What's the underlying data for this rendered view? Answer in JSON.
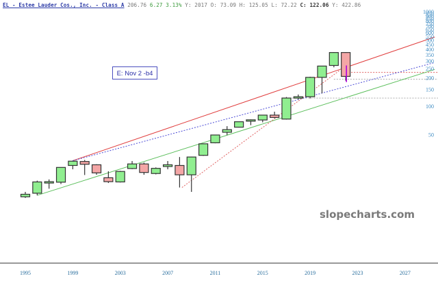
{
  "header": {
    "title": "EL - Estee Lauder Cos., Inc. - Class A",
    "price": "206.76",
    "change": "6.27",
    "change_pct": "3.13%",
    "year_label": "Y: 2017",
    "open_label": "O:",
    "open": "73.09",
    "high_label": "H:",
    "high": "125.05",
    "low_label": "L:",
    "low": "72.22",
    "close_label": "C:",
    "close": "122.06",
    "extra_label": "Y:",
    "extra": "422.86"
  },
  "annotation": {
    "text": "E:  Nov 2 -b4"
  },
  "watermark": "slopecharts.com",
  "colors": {
    "up_fill": "#90ee90",
    "down_fill": "#f4a6a6",
    "candle_border": "#333333",
    "red_trend": "#e03c3c",
    "blue_trend": "#4a4ad6",
    "green_trend": "#5cbf5c",
    "red_dotted": "#e06060",
    "gray_dotted": "#aaaaaa",
    "magenta_marker": "#b000e0",
    "axis_text": "#3c8ac2"
  },
  "chart_data": {
    "type": "candlestick",
    "title": "EL - Estee Lauder Cos., Inc. - Class A (yearly, log scale)",
    "xlabel": "",
    "ylabel": "",
    "y_scale": "log",
    "ylim": [
      28,
      1000
    ],
    "y_ticks": [
      50,
      100,
      150,
      200,
      250,
      300,
      350,
      400,
      450,
      500,
      550,
      600,
      650,
      700,
      750,
      800,
      850,
      900,
      950,
      1000
    ],
    "x_ticks": [
      "1995",
      "1999",
      "2003",
      "2007",
      "2011",
      "2015",
      "2019",
      "2023",
      "2027"
    ],
    "candles": [
      {
        "year": 1995,
        "open": 11.0,
        "close": 11.7,
        "high": 12.4,
        "low": 10.7
      },
      {
        "year": 1996,
        "open": 12.0,
        "close": 15.8,
        "high": 16.3,
        "low": 11.4
      },
      {
        "year": 1997,
        "open": 15.5,
        "close": 15.9,
        "high": 16.8,
        "low": 13.4
      },
      {
        "year": 1998,
        "open": 15.7,
        "close": 22.5,
        "high": 22.5,
        "low": 15.0
      },
      {
        "year": 1999,
        "open": 23.6,
        "close": 26.2,
        "high": 26.5,
        "low": 21.5
      },
      {
        "year": 2000,
        "open": 26.0,
        "close": 24.3,
        "high": 27.0,
        "low": 18.7
      },
      {
        "year": 2001,
        "open": 24.0,
        "close": 19.7,
        "high": 24.3,
        "low": 18.8
      },
      {
        "year": 2002,
        "open": 17.5,
        "close": 15.9,
        "high": 20.5,
        "low": 15.4
      },
      {
        "year": 2003,
        "open": 15.8,
        "close": 20.4,
        "high": 20.7,
        "low": 15.6
      },
      {
        "year": 2004,
        "open": 21.9,
        "close": 24.5,
        "high": 26.3,
        "low": 21.6
      },
      {
        "year": 2005,
        "open": 24.5,
        "close": 19.9,
        "high": 25.3,
        "low": 18.8
      },
      {
        "year": 2006,
        "open": 19.4,
        "close": 22.0,
        "high": 22.5,
        "low": 19.0
      },
      {
        "year": 2007,
        "open": 23.0,
        "close": 24.0,
        "high": 26.3,
        "low": 21.5
      },
      {
        "year": 2008,
        "open": 23.6,
        "close": 18.8,
        "high": 29.0,
        "low": 13.8
      },
      {
        "year": 2009,
        "open": 18.8,
        "close": 29.0,
        "high": 29.2,
        "low": 12.4
      },
      {
        "year": 2010,
        "open": 30.2,
        "close": 40.0,
        "high": 40.2,
        "low": 29.8
      },
      {
        "year": 2011,
        "open": 41.0,
        "close": 49.6,
        "high": 50.0,
        "low": 40.5
      },
      {
        "year": 2012,
        "open": 53.0,
        "close": 56.5,
        "high": 61.5,
        "low": 49.5
      },
      {
        "year": 2013,
        "open": 60.0,
        "close": 68.5,
        "high": 68.5,
        "low": 59.5
      },
      {
        "year": 2014,
        "open": 71.0,
        "close": 71.8,
        "high": 72.5,
        "low": 63.0
      },
      {
        "year": 2015,
        "open": 71.5,
        "close": 80.5,
        "high": 81.0,
        "low": 67.5
      },
      {
        "year": 2016,
        "open": 80.5,
        "close": 76.0,
        "high": 87.5,
        "low": 74.5
      },
      {
        "year": 2017,
        "open": 73.09,
        "close": 122.06,
        "high": 125.05,
        "low": 72.22
      },
      {
        "year": 2018,
        "open": 125.0,
        "close": 126.0,
        "high": 133.0,
        "low": 118.0
      },
      {
        "year": 2019,
        "open": 126.0,
        "close": 202.0,
        "high": 205.0,
        "low": 121.0
      },
      {
        "year": 2020,
        "open": 202.0,
        "close": 266.0,
        "high": 266.0,
        "low": 137.0
      },
      {
        "year": 2021,
        "open": 270.0,
        "close": 370.0,
        "high": 374.0,
        "low": 258.0
      },
      {
        "year": 2022,
        "open": 370.0,
        "close": 206.76,
        "high": 374.0,
        "low": 186.0
      }
    ],
    "trendlines": [
      {
        "name": "red-upper-trend",
        "style": "solid",
        "from": {
          "year": 1999,
          "value": 26.5
        },
        "to": {
          "year": 2029.5,
          "value": 540
        }
      },
      {
        "name": "blue-dotted-trend",
        "style": "dotted",
        "from": {
          "year": 1999,
          "value": 26.5
        },
        "to": {
          "year": 2029.5,
          "value": 290
        }
      },
      {
        "name": "green-lower-trend",
        "style": "solid",
        "from": {
          "year": 1996,
          "value": 11.4
        },
        "to": {
          "year": 2029.5,
          "value": 245
        }
      },
      {
        "name": "red-dotted-trend",
        "style": "dotted",
        "from": {
          "year": 2008.2,
          "value": 13.8
        },
        "to": {
          "year": 2021.5,
          "value": 240
        }
      }
    ],
    "horizontal_lines": [
      {
        "name": "red-dotted-level",
        "value": 228,
        "from_year": 2022,
        "color": "red"
      },
      {
        "name": "gray-dotted-level-upper",
        "value": 193,
        "from_year": 2021,
        "color": "gray"
      },
      {
        "name": "gray-dotted-level-lower",
        "value": 122,
        "from_year": 2017,
        "color": "gray"
      }
    ],
    "markers": [
      {
        "name": "magenta-current-marker",
        "year": 2022,
        "value_top": 270,
        "value_bottom": 180
      }
    ],
    "annotations": [
      "E:  Nov 2 -b4"
    ]
  }
}
